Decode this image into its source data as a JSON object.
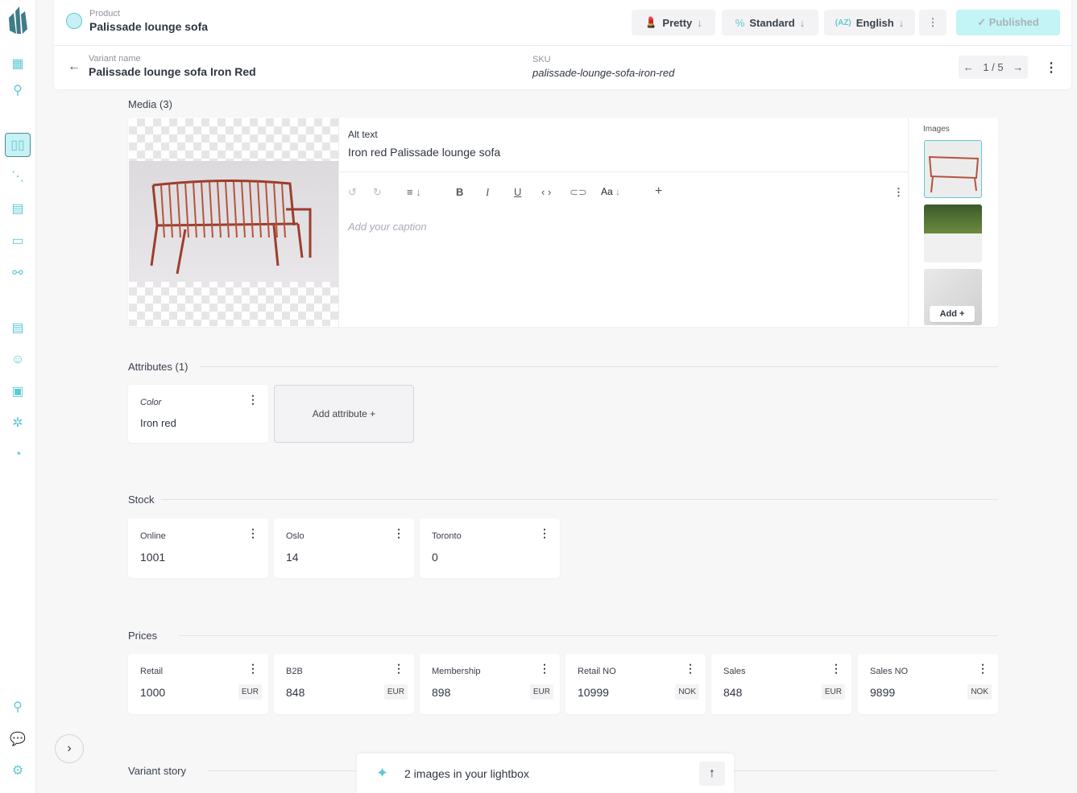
{
  "header": {
    "product_label": "Product",
    "product_name": "Palissade lounge sofa",
    "variant_label": "Variant name",
    "variant_name": "Palissade lounge sofa Iron Red",
    "sku_label": "SKU",
    "sku": "palissade-lounge-sofa-iron-red",
    "pager": "1 / 5",
    "buttons": {
      "pretty": "Pretty",
      "standard": "Standard",
      "english": "English",
      "published": "✓ Published"
    }
  },
  "media": {
    "title": "Media (3)",
    "alt_label": "Alt text",
    "alt_value": "Iron red Palissade lounge sofa",
    "caption_placeholder": "Add your caption",
    "images_label": "Images",
    "add_label": "Add +",
    "toolbar": {
      "font": "Aa",
      "bold": "B",
      "italic": "I",
      "underline": "U",
      "code": "‹ ›",
      "plus": "+"
    }
  },
  "attributes": {
    "title": "Attributes (1)",
    "items": [
      {
        "label": "Color",
        "value": "Iron red"
      }
    ],
    "add_label": "Add attribute +"
  },
  "stock": {
    "title": "Stock",
    "items": [
      {
        "label": "Online",
        "value": "1001"
      },
      {
        "label": "Oslo",
        "value": "14"
      },
      {
        "label": "Toronto",
        "value": "0"
      }
    ]
  },
  "prices": {
    "title": "Prices",
    "items": [
      {
        "label": "Retail",
        "value": "1000",
        "currency": "EUR"
      },
      {
        "label": "B2B",
        "value": "848",
        "currency": "EUR"
      },
      {
        "label": "Membership",
        "value": "898",
        "currency": "EUR"
      },
      {
        "label": "Retail NO",
        "value": "10999",
        "currency": "NOK"
      },
      {
        "label": "Sales",
        "value": "848",
        "currency": "EUR"
      },
      {
        "label": "Sales NO",
        "value": "9899",
        "currency": "NOK"
      }
    ]
  },
  "variant_story": {
    "title": "Variant story"
  },
  "lightbox": {
    "text": "2 images in your lightbox"
  },
  "colors": {
    "accent": "#5fc9d3",
    "published_bg": "#c3f4f6",
    "logo": "#3f7c88"
  }
}
